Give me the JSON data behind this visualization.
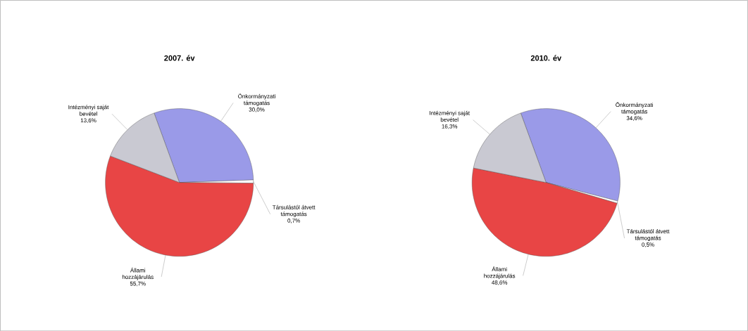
{
  "chart_data": [
    {
      "type": "pie",
      "title": "2007. év",
      "categories": [
        "Önkormányzati támogatás",
        "Társulástól átvett támogatás",
        "Állami hozzájárulás",
        "Intézményi saját bevétel"
      ],
      "values": [
        30.0,
        0.7,
        55.7,
        13.6
      ],
      "colors": [
        "#9a9ae8",
        "#ffffff",
        "#e84545",
        "#c9c9d2"
      ],
      "value_labels": [
        "30,0%",
        "0,7%",
        "55,7%",
        "13,6%"
      ]
    },
    {
      "type": "pie",
      "title": "2010. év",
      "categories": [
        "Önkormányzati támogatás",
        "Társulástól átvett támogatás",
        "Állami hozzájárulás",
        "Intézményi saját bevétel"
      ],
      "values": [
        34.6,
        0.5,
        48.6,
        16.3
      ],
      "colors": [
        "#9a9ae8",
        "#ffffff",
        "#e84545",
        "#c9c9d2"
      ],
      "value_labels": [
        "34,6%",
        "0,5%",
        "48,6%",
        "16,3%"
      ]
    }
  ]
}
